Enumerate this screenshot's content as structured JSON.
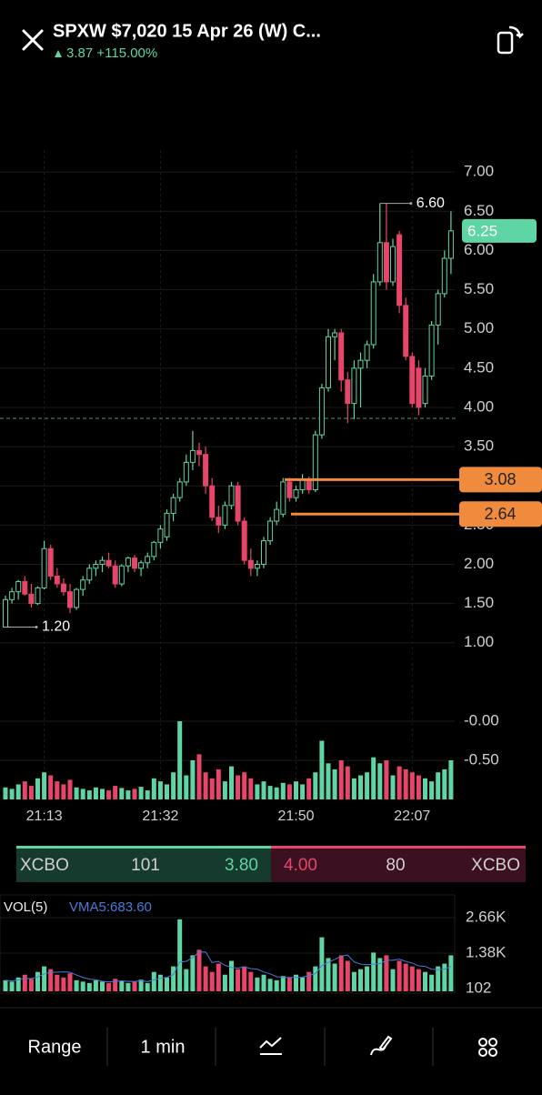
{
  "header": {
    "title": "SPXW $7,020 15 Apr 26 (W) C...",
    "change": "3.87 +115.00%"
  },
  "chart_data": {
    "type": "candlestick",
    "categories": [
      null,
      null,
      null,
      null,
      null,
      null,
      "21:13",
      null,
      null,
      null,
      null,
      null,
      null,
      null,
      null,
      null,
      null,
      null,
      null,
      null,
      null,
      null,
      null,
      null,
      "21:32",
      null,
      null,
      null,
      null,
      null,
      null,
      null,
      null,
      null,
      null,
      null,
      null,
      null,
      null,
      null,
      null,
      null,
      null,
      null,
      null,
      "21:50",
      null,
      null,
      null,
      null,
      null,
      null,
      null,
      null,
      null,
      null,
      null,
      null,
      null,
      null,
      null,
      null,
      null,
      "22:07",
      null,
      null,
      null,
      null,
      null,
      null
    ],
    "open": [
      1.2,
      1.55,
      1.65,
      1.78,
      1.62,
      1.5,
      1.7,
      2.2,
      1.85,
      1.75,
      1.65,
      1.45,
      1.68,
      1.8,
      1.95,
      2.0,
      2.05,
      1.98,
      1.75,
      1.98,
      2.08,
      1.95,
      2.02,
      2.1,
      2.28,
      2.35,
      2.65,
      2.85,
      3.05,
      3.3,
      3.45,
      3.4,
      3.0,
      2.6,
      2.5,
      2.75,
      3.0,
      2.55,
      2.05,
      1.95,
      2.0,
      2.3,
      2.55,
      2.64,
      3.05,
      2.85,
      2.95,
      3.08,
      2.95,
      3.65,
      4.25,
      4.9,
      4.95,
      4.35,
      4.05,
      4.5,
      4.6,
      4.8,
      5.6,
      6.1,
      5.6,
      6.2,
      5.3,
      4.65,
      4.5,
      4.05,
      4.4,
      5.05,
      5.45,
      5.9
    ],
    "high": [
      1.6,
      1.7,
      1.8,
      1.85,
      1.75,
      1.72,
      2.3,
      2.25,
      1.95,
      1.82,
      1.75,
      1.7,
      1.85,
      2.0,
      2.05,
      2.1,
      2.15,
      2.05,
      2.0,
      2.1,
      2.12,
      2.05,
      2.15,
      2.3,
      2.5,
      2.7,
      2.9,
      3.1,
      3.4,
      3.7,
      3.55,
      3.5,
      3.1,
      2.75,
      2.8,
      3.05,
      3.05,
      2.6,
      2.2,
      2.05,
      2.35,
      2.6,
      2.8,
      3.1,
      3.1,
      3.0,
      3.15,
      3.12,
      3.7,
      4.3,
      5.0,
      5.0,
      5.0,
      4.45,
      4.6,
      4.7,
      4.85,
      5.7,
      6.6,
      6.6,
      6.15,
      6.25,
      5.4,
      4.7,
      4.6,
      4.5,
      5.1,
      5.5,
      6.0,
      6.5
    ],
    "low": [
      1.2,
      1.5,
      1.55,
      1.6,
      1.45,
      1.48,
      1.68,
      1.8,
      1.7,
      1.6,
      1.38,
      1.42,
      1.6,
      1.75,
      1.85,
      1.9,
      1.95,
      1.7,
      1.72,
      1.9,
      1.9,
      1.85,
      1.95,
      2.05,
      2.2,
      2.3,
      2.55,
      2.8,
      3.0,
      3.2,
      3.25,
      2.9,
      2.55,
      2.4,
      2.45,
      2.7,
      2.5,
      2.0,
      1.85,
      1.85,
      1.95,
      2.25,
      2.5,
      2.6,
      2.8,
      2.8,
      2.9,
      2.9,
      2.92,
      3.6,
      4.2,
      4.6,
      4.2,
      3.8,
      3.85,
      4.0,
      4.5,
      4.75,
      5.55,
      5.5,
      5.55,
      5.2,
      4.6,
      4.0,
      3.9,
      4.0,
      4.35,
      4.8,
      5.4,
      5.7
    ],
    "close": [
      1.55,
      1.65,
      1.78,
      1.62,
      1.5,
      1.7,
      2.2,
      1.85,
      1.75,
      1.65,
      1.45,
      1.68,
      1.8,
      1.95,
      2.0,
      2.05,
      1.98,
      1.75,
      1.98,
      2.08,
      1.95,
      2.02,
      2.1,
      2.28,
      2.45,
      2.65,
      2.85,
      3.05,
      3.3,
      3.45,
      3.4,
      3.0,
      2.6,
      2.5,
      2.75,
      3.0,
      2.55,
      2.05,
      1.95,
      2.0,
      2.3,
      2.55,
      2.7,
      3.05,
      2.85,
      2.95,
      3.08,
      2.95,
      3.65,
      4.25,
      4.9,
      4.95,
      4.35,
      4.05,
      4.5,
      4.6,
      4.8,
      5.6,
      6.1,
      5.6,
      6.05,
      5.3,
      4.65,
      4.05,
      4.0,
      4.4,
      5.05,
      5.45,
      5.9,
      6.25
    ],
    "volume": [
      400,
      350,
      500,
      600,
      450,
      700,
      900,
      800,
      600,
      500,
      650,
      400,
      350,
      300,
      400,
      350,
      300,
      450,
      380,
      300,
      350,
      420,
      300,
      700,
      600,
      500,
      900,
      2600,
      800,
      1300,
      1500,
      900,
      700,
      1000,
      600,
      1100,
      800,
      900,
      700,
      500,
      600,
      450,
      400,
      550,
      500,
      600,
      500,
      700,
      900,
      1950,
      1200,
      1000,
      1300,
      1100,
      700,
      800,
      900,
      1400,
      1200,
      1300,
      800,
      1100,
      1000,
      900,
      800,
      700,
      600,
      900,
      1000,
      1300
    ],
    "up_color": "#5fd4a4",
    "down_color": "#e8456a",
    "ylim": [
      -1,
      7.28
    ],
    "yticks": [
      {
        "value": 7,
        "label": "7.00"
      },
      {
        "value": 6.5,
        "label": "6.50"
      },
      {
        "value": 6,
        "label": "6.00"
      },
      {
        "value": 5.5,
        "label": "5.50"
      },
      {
        "value": 5,
        "label": "5.00"
      },
      {
        "value": 4.5,
        "label": "4.50"
      },
      {
        "value": 4,
        "label": "4.00"
      },
      {
        "value": 3.5,
        "label": "3.50"
      },
      {
        "value": 3,
        "label": "3.00"
      },
      {
        "value": 2.5,
        "label": "2.50"
      },
      {
        "value": 2,
        "label": "2.00"
      },
      {
        "value": 1.5,
        "label": "1.50"
      },
      {
        "value": 1,
        "label": "1.00"
      },
      {
        "value": 0,
        "label": "-0.00"
      },
      {
        "value": -0.5,
        "label": "-0.50"
      }
    ],
    "grid": true,
    "annotations": [
      {
        "value": 6.6,
        "label": "6.60"
      },
      {
        "value": 1.2,
        "label": "1.20"
      }
    ],
    "reference_line": 3.86,
    "price_lines": [
      {
        "value": 3.08,
        "label": "3.08",
        "color": "#f08a3c"
      },
      {
        "value": 2.64,
        "label": "2.64",
        "color": "#f08a3c"
      }
    ],
    "last_price": {
      "value": 6.25,
      "label": "6.25"
    },
    "volume_title": "VOL(5)",
    "vma_label": "VMA5:683.60",
    "volume_ylim": [
      0,
      2660
    ],
    "volume_yticks": [
      {
        "value": 2660,
        "label": "2.66K"
      },
      {
        "value": 1380,
        "label": "1.38K"
      },
      102
    ]
  },
  "order_bar": {
    "bid_exchange": "XCBO",
    "bid_size": "101",
    "bid": "3.80",
    "ask": "4.00",
    "ask_size": "80",
    "ask_exchange": "XCBO"
  },
  "nav": {
    "range": "Range",
    "interval": "1 min"
  }
}
